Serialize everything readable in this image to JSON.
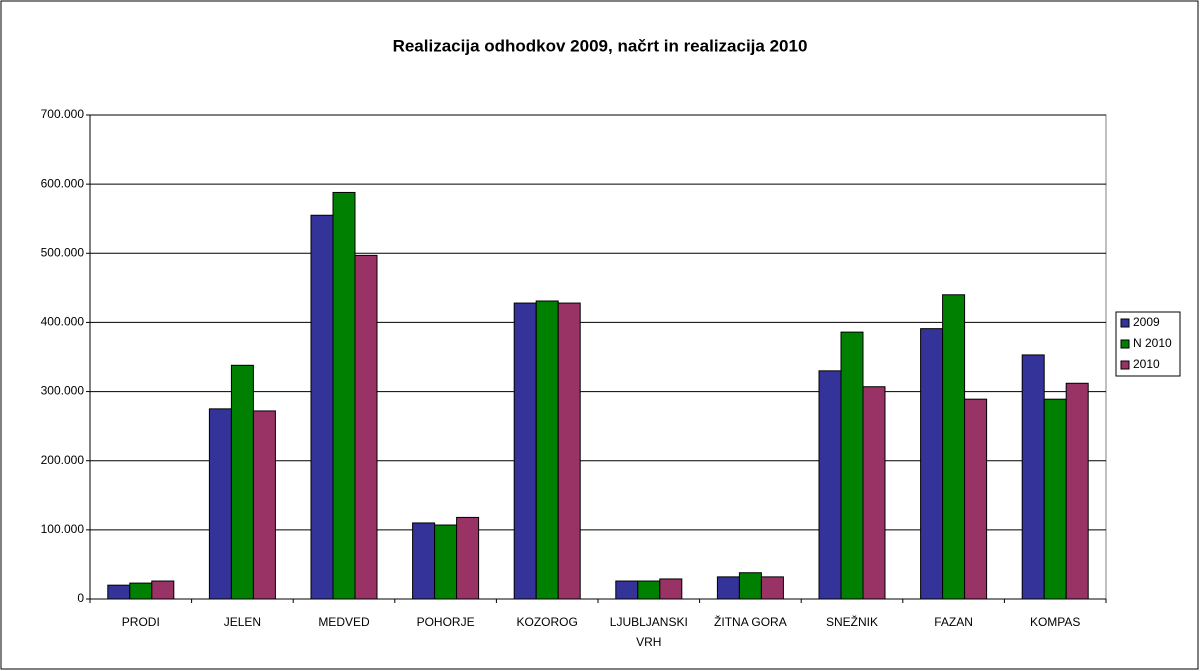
{
  "chart_data": {
    "type": "bar",
    "title": "Realizacija odhodkov 2009, načrt in realizacija 2010",
    "categories": [
      "PRODI",
      "JELEN",
      "MEDVED",
      "POHORJE",
      "KOZOROG",
      "LJUBLJANSKI VRH",
      "ŽITNA GORA",
      "SNEŽNIK",
      "FAZAN",
      "KOMPAS"
    ],
    "series": [
      {
        "name": "2009",
        "color": "#333399",
        "values": [
          20000,
          275000,
          555000,
          110000,
          428000,
          26000,
          32000,
          330000,
          391000,
          353000
        ]
      },
      {
        "name": "N 2010",
        "color": "#008000",
        "values": [
          23000,
          338000,
          588000,
          107000,
          431000,
          26000,
          38000,
          386000,
          440000,
          289000
        ]
      },
      {
        "name": "2010",
        "color": "#993366",
        "values": [
          26000,
          272000,
          497000,
          118000,
          428000,
          29000,
          32000,
          307000,
          289000,
          312000
        ]
      }
    ],
    "ylim": [
      0,
      700000
    ],
    "yticks": [
      0,
      {
        "value": 100000,
        "label": "100.000"
      },
      {
        "value": 200000,
        "label": "200.000"
      },
      {
        "value": 300000,
        "label": "300.000"
      },
      {
        "value": 400000,
        "label": "400.000"
      },
      {
        "value": 500000,
        "label": "500.000"
      },
      {
        "value": 600000,
        "label": "600.000"
      },
      {
        "value": 700000,
        "label": "700.000"
      }
    ],
    "grid": true,
    "legend": "right"
  }
}
